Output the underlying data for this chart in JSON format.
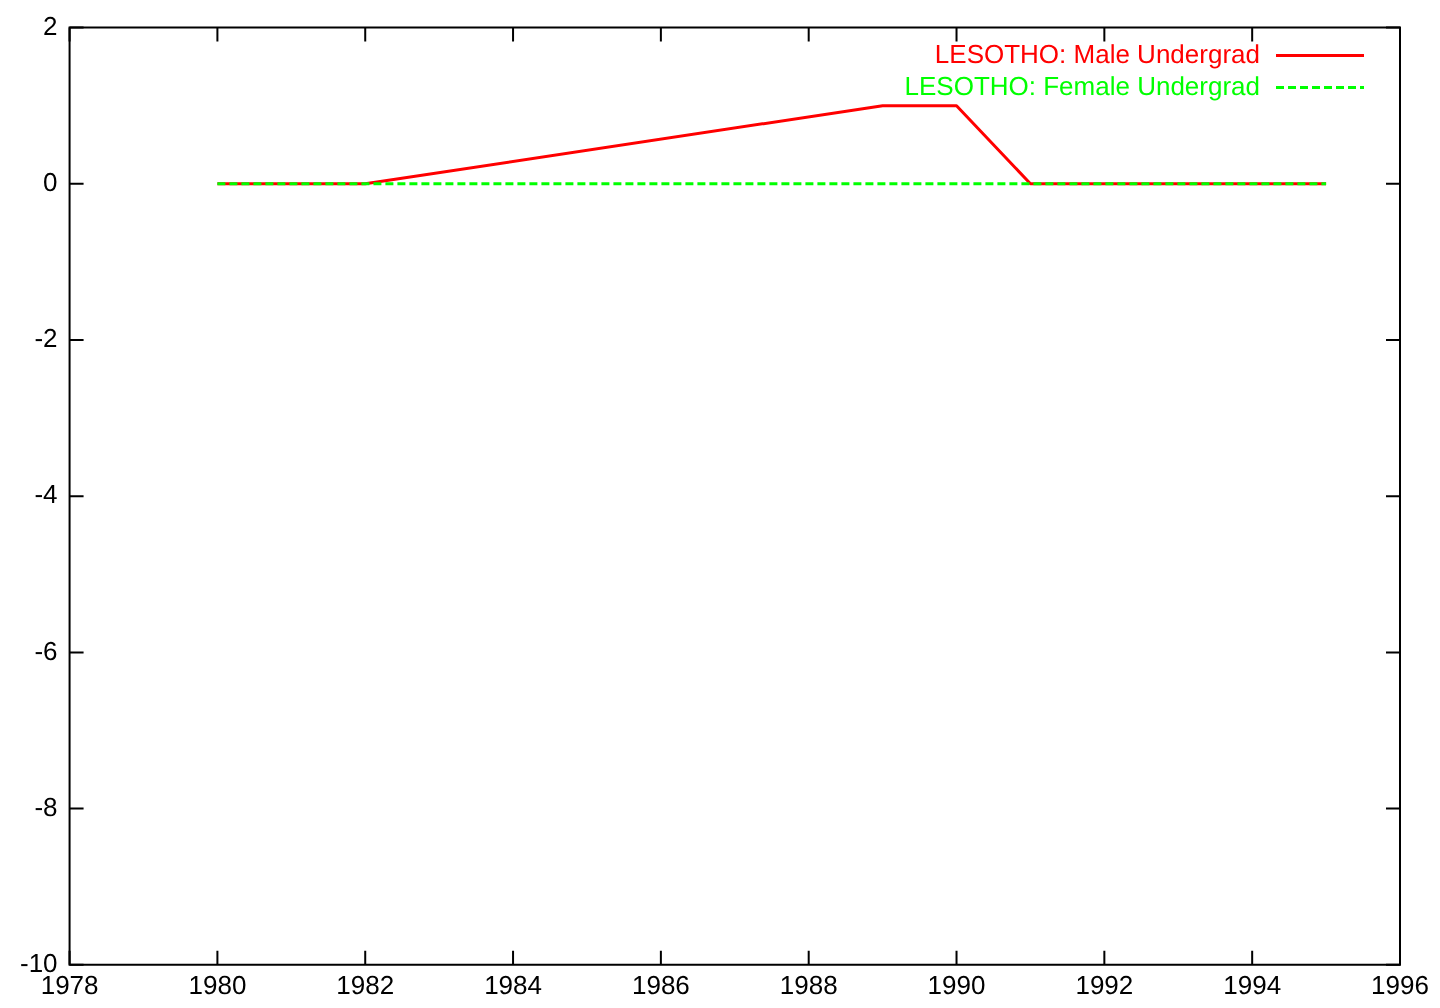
{
  "chart_data": {
    "type": "line",
    "xlim": [
      1978,
      1996
    ],
    "xticks": [
      1978,
      1980,
      1982,
      1984,
      1986,
      1988,
      1990,
      1992,
      1994,
      1996
    ],
    "ylim": [
      -10,
      2
    ],
    "yticks": [
      -10,
      -8,
      -6,
      -4,
      -2,
      0,
      2
    ],
    "grid": false,
    "legend": "top right",
    "marker": "none",
    "series": [
      {
        "name": "LESOTHO: Male Undergrad",
        "color": "#ff0000",
        "line_style": "solid",
        "x": [
          1980,
          1982,
          1989,
          1990,
          1991,
          1995
        ],
        "values": [
          0,
          0,
          1,
          1,
          0,
          0
        ]
      },
      {
        "name": "LESOTHO: Female Undergrad",
        "color": "#00ff00",
        "line_style": "dashed",
        "x": [
          1980,
          1995
        ],
        "values": [
          0,
          0
        ]
      }
    ]
  }
}
